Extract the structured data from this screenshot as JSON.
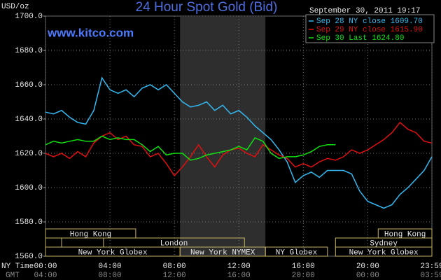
{
  "chart_data": {
    "type": "line",
    "title": "24 Hour Spot Gold (Bid)",
    "watermark": "www.kitco.com",
    "timestamp": "September 30, 2011 19:17",
    "y_label": "USD/oz",
    "x_label": "NY Time",
    "x2_label": "GMT",
    "xlim": [
      0,
      23.983
    ],
    "ylim": [
      1560,
      1700
    ],
    "xticks": [
      {
        "value": 0,
        "label": "00:00"
      },
      {
        "value": 4,
        "label": "04:00"
      },
      {
        "value": 8,
        "label": "08:00"
      },
      {
        "value": 12,
        "label": "12:00"
      },
      {
        "value": 16,
        "label": "16:00"
      },
      {
        "value": 20,
        "label": "20:00"
      },
      {
        "value": 23.983,
        "label": "23:59"
      }
    ],
    "x2ticks": [
      {
        "value": 0,
        "label": "04:00"
      },
      {
        "value": 4,
        "label": "08:00"
      },
      {
        "value": 8,
        "label": "12:00"
      },
      {
        "value": 12,
        "label": "16:00"
      },
      {
        "value": 16,
        "label": "20:00"
      },
      {
        "value": 20,
        "label": "00:00"
      },
      {
        "value": 23.983,
        "label": "03:59"
      }
    ],
    "yticks": [
      {
        "value": 1560,
        "label": "1560.0"
      },
      {
        "value": 1580,
        "label": "1580.0"
      },
      {
        "value": 1600,
        "label": "1600.0"
      },
      {
        "value": 1620,
        "label": "1620.0"
      },
      {
        "value": 1640,
        "label": "1640.0"
      },
      {
        "value": 1660,
        "label": "1660.0"
      },
      {
        "value": 1680,
        "label": "1680.0"
      },
      {
        "value": 1700,
        "label": "1700.0"
      }
    ],
    "grid": true,
    "shaded_range": [
      8.35,
      13.65
    ],
    "sessions": [
      {
        "label": "Hong Kong",
        "start": 0,
        "end": 5.6
      },
      {
        "label": "London",
        "start": 3.6,
        "end": 12.35
      },
      {
        "label": "New York Globex",
        "start": 0,
        "end": 8.35
      },
      {
        "label": "New York NYMEX",
        "start": 8.35,
        "end": 13.65
      },
      {
        "label": "NY Globex",
        "start": 13.65,
        "end": 17.5
      },
      {
        "label": "Hong Kong",
        "start": 20.65,
        "end": 23.983
      },
      {
        "label": "Sydney",
        "start": 18,
        "end": 23.983
      },
      {
        "label": "New York Globex",
        "start": 18,
        "end": 23.983
      }
    ],
    "x": [
      0,
      0.5,
      1,
      1.5,
      2,
      2.5,
      3,
      3.5,
      4,
      4.5,
      5,
      5.5,
      6,
      6.5,
      7,
      7.5,
      8,
      8.5,
      9,
      9.5,
      10,
      10.5,
      11,
      11.5,
      12,
      12.5,
      13,
      13.5,
      14,
      14.5,
      15,
      15.5,
      16,
      16.5,
      17,
      17.5,
      18,
      18.5,
      19,
      19.5,
      20,
      20.5,
      21,
      21.5,
      22,
      22.5,
      23,
      23.5,
      23.983
    ],
    "series": [
      {
        "name": "Sep 28 NY close 1609.70",
        "color": "#33b8f0",
        "values": [
          1644,
          1643,
          1645,
          1641,
          1638,
          1637,
          1645,
          1664,
          1657,
          1655,
          1657,
          1653,
          1658,
          1660,
          1657,
          1660,
          1655,
          1650,
          1647,
          1648,
          1650,
          1645,
          1648,
          1643,
          1645,
          1641,
          1636,
          1632,
          1628,
          1622,
          1615,
          1603,
          1607,
          1609,
          1606,
          1610,
          1610,
          1610,
          1608,
          1598,
          1592,
          1590,
          1588,
          1590,
          1596,
          1600,
          1605,
          1610,
          1618
        ]
      },
      {
        "name": "Sep 29 NY close 1615.90",
        "color": "#e01010",
        "values": [
          1620,
          1618,
          1620,
          1617,
          1621,
          1618,
          1626,
          1630,
          1632,
          1628,
          1630,
          1625,
          1624,
          1618,
          1620,
          1614,
          1607,
          1612,
          1618,
          1625,
          1618,
          1612,
          1619,
          1622,
          1623,
          1620,
          1618,
          1625,
          1622,
          1619,
          1617,
          1612,
          1614,
          1612,
          1615,
          1617,
          1616,
          1618,
          1622,
          1620,
          1622,
          1625,
          1628,
          1632,
          1638,
          1634,
          1632,
          1627,
          1626
        ]
      },
      {
        "name": "Sep 30 Last 1624.80",
        "color": "#10e010",
        "values": [
          1625,
          1627,
          1626,
          1627,
          1628,
          1627,
          1627,
          1630,
          1628,
          1629,
          1628,
          1628,
          1625,
          1621,
          1624,
          1619,
          1620,
          1620,
          1616,
          1617,
          1619,
          1620,
          1621,
          1622,
          1624,
          1622,
          1629,
          1627,
          1620,
          1617,
          1618,
          1618,
          1619,
          1621,
          1624,
          1625,
          1625,
          null,
          null,
          null,
          null,
          null,
          null,
          null,
          null,
          null,
          null,
          null,
          null
        ]
      }
    ]
  }
}
